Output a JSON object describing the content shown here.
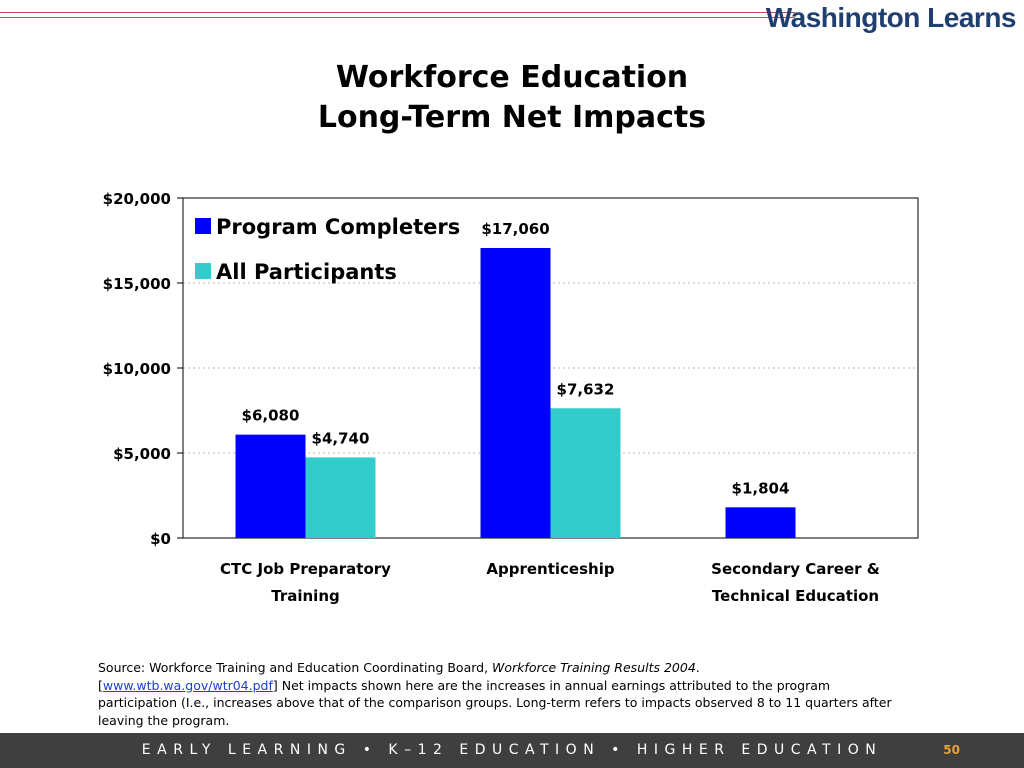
{
  "header": {
    "logo_text": "Washington Learns"
  },
  "title": {
    "line1": "Workforce Education",
    "line2": "Long-Term Net Impacts"
  },
  "chart_data": {
    "type": "bar",
    "categories": [
      [
        "CTC Job Preparatory",
        "Training"
      ],
      [
        "Apprenticeship"
      ],
      [
        "Secondary Career &",
        "Technical Education"
      ]
    ],
    "series": [
      {
        "name": "Program Completers",
        "color": "#0000ff",
        "values": [
          6080,
          17060,
          1804
        ],
        "labels": [
          "$6,080",
          "$17,060",
          "$1,804"
        ]
      },
      {
        "name": "All Participants",
        "color": "#33cccc",
        "values": [
          4740,
          7632,
          null
        ],
        "labels": [
          "$4,740",
          "$7,632",
          ""
        ]
      }
    ],
    "ylim": [
      0,
      20000
    ],
    "yticks": [
      0,
      5000,
      10000,
      15000,
      20000
    ],
    "ytick_labels": [
      "$0",
      "$5,000",
      "$10,000",
      "$15,000",
      "$20,000"
    ],
    "grid": true,
    "legend_position": "top-left"
  },
  "source": {
    "prefix": "Source: Workforce Training and Education Coordinating Board, ",
    "publication": "Workforce Training Results 2004",
    "period": ".",
    "link_text": "www.wtb.wa.gov/wtr04.pdf",
    "note": " Net impacts shown here are the increases in annual earnings attributed to the program participation (I.e., increases above that of the comparison groups.  Long-term refers to impacts observed 8 to 11 quarters after leaving the program."
  },
  "footer": {
    "text": "EARLY LEARNING  •  K–12 EDUCATION  •  HIGHER EDUCATION",
    "page_number": "50",
    "page_number_color": "#e8a33b"
  },
  "colors": {
    "accent_rule": "#c0504d",
    "logo": "#1f3f6e",
    "footer_bg": "#3f3f3f"
  }
}
